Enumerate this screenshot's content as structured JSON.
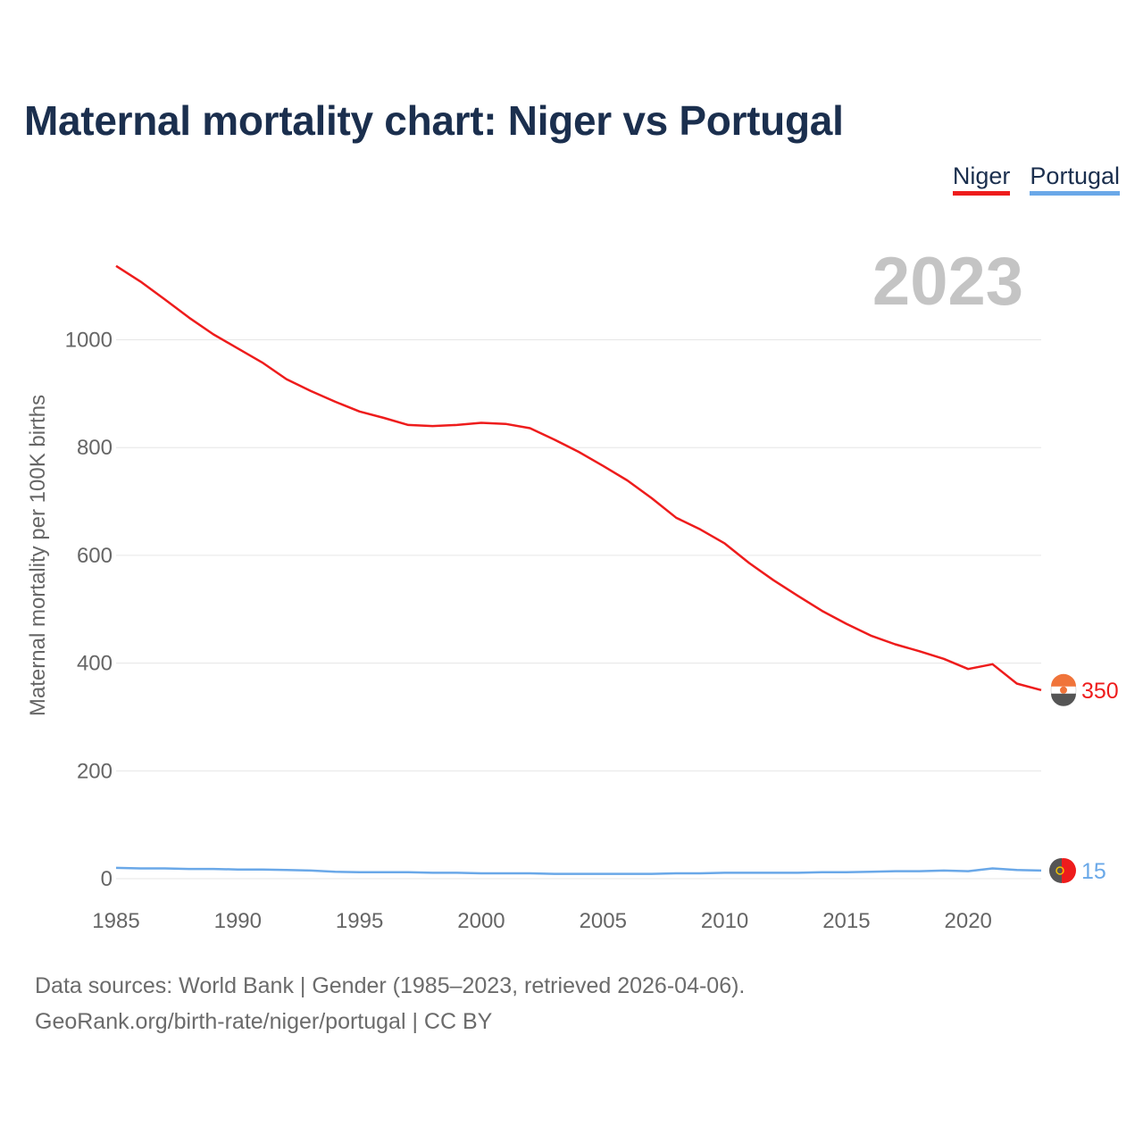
{
  "title": "Maternal mortality chart: Niger vs Portugal",
  "legend": [
    {
      "name": "Niger",
      "color": "#ee1c1c"
    },
    {
      "name": "Portugal",
      "color": "#6aa8e8"
    }
  ],
  "footer": {
    "line1": "Data sources: World Bank | Gender (1985–2023, retrieved 2026-04-06).",
    "line2": "GeoRank.org/birth-rate/niger/portugal | CC BY"
  },
  "chart_data": {
    "type": "line",
    "title": "Maternal mortality chart: Niger vs Portugal",
    "year_label": "2023",
    "xlabel": "",
    "ylabel": "Maternal mortality per 100K births",
    "xlim": [
      1985,
      2023
    ],
    "ylim": [
      0,
      1150
    ],
    "x_ticks": [
      1985,
      1990,
      1995,
      2000,
      2005,
      2010,
      2015,
      2020
    ],
    "y_ticks": [
      0,
      200,
      400,
      600,
      800,
      1000
    ],
    "grid": true,
    "legend_position": "top-right",
    "x": [
      1985,
      1986,
      1987,
      1988,
      1989,
      1990,
      1991,
      1992,
      1993,
      1994,
      1995,
      1996,
      1997,
      1998,
      1999,
      2000,
      2001,
      2002,
      2003,
      2004,
      2005,
      2006,
      2007,
      2008,
      2009,
      2010,
      2011,
      2012,
      2013,
      2014,
      2015,
      2016,
      2017,
      2018,
      2019,
      2020,
      2021,
      2022,
      2023
    ],
    "series": [
      {
        "name": "Niger",
        "color": "#ee1c1c",
        "end_label": "350",
        "values": [
          1137,
          1108,
          1075,
          1041,
          1010,
          984,
          958,
          927,
          905,
          885,
          867,
          855,
          842,
          840,
          842,
          846,
          844,
          836,
          815,
          792,
          766,
          739,
          706,
          670,
          648,
          622,
          586,
          554,
          525,
          497,
          473,
          451,
          435,
          422,
          408,
          389,
          398,
          362,
          350
        ]
      },
      {
        "name": "Portugal",
        "color": "#6aa8e8",
        "end_label": "15",
        "values": [
          20,
          19,
          19,
          18,
          18,
          17,
          17,
          16,
          15,
          13,
          12,
          12,
          12,
          11,
          11,
          10,
          10,
          10,
          9,
          9,
          9,
          9,
          9,
          10,
          10,
          11,
          11,
          11,
          11,
          12,
          12,
          13,
          14,
          14,
          15,
          14,
          19,
          16,
          15
        ]
      }
    ]
  }
}
